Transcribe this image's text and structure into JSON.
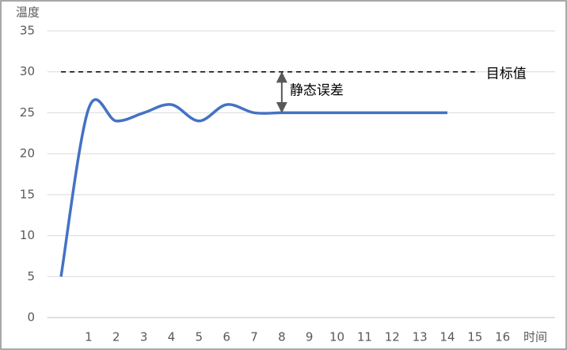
{
  "chart_data": {
    "type": "line",
    "y_label": "温度",
    "x_label": "时间",
    "series": [
      {
        "name": "温度",
        "color": "#4472c4",
        "x": [
          0,
          1,
          2,
          3,
          4,
          5,
          6,
          7,
          8,
          9,
          10,
          11,
          12,
          13,
          14
        ],
        "values": [
          5,
          25.5,
          24,
          25,
          26,
          24,
          26,
          25,
          25,
          25,
          25,
          25,
          25,
          25,
          25
        ]
      }
    ],
    "xlim": [
      -0.5,
      17.9
    ],
    "xticks": [
      1,
      2,
      3,
      4,
      5,
      6,
      7,
      8,
      9,
      10,
      11,
      12,
      13,
      14,
      15,
      16
    ],
    "ylim": [
      0,
      35
    ],
    "yticks": [
      0,
      5,
      10,
      15,
      20,
      25,
      30,
      35
    ],
    "grid": true,
    "target": {
      "value": 30,
      "label": "目标值",
      "color": "#000000"
    },
    "annotation": {
      "text": "静态误差",
      "x": 8,
      "from": 25,
      "to": 30
    }
  }
}
